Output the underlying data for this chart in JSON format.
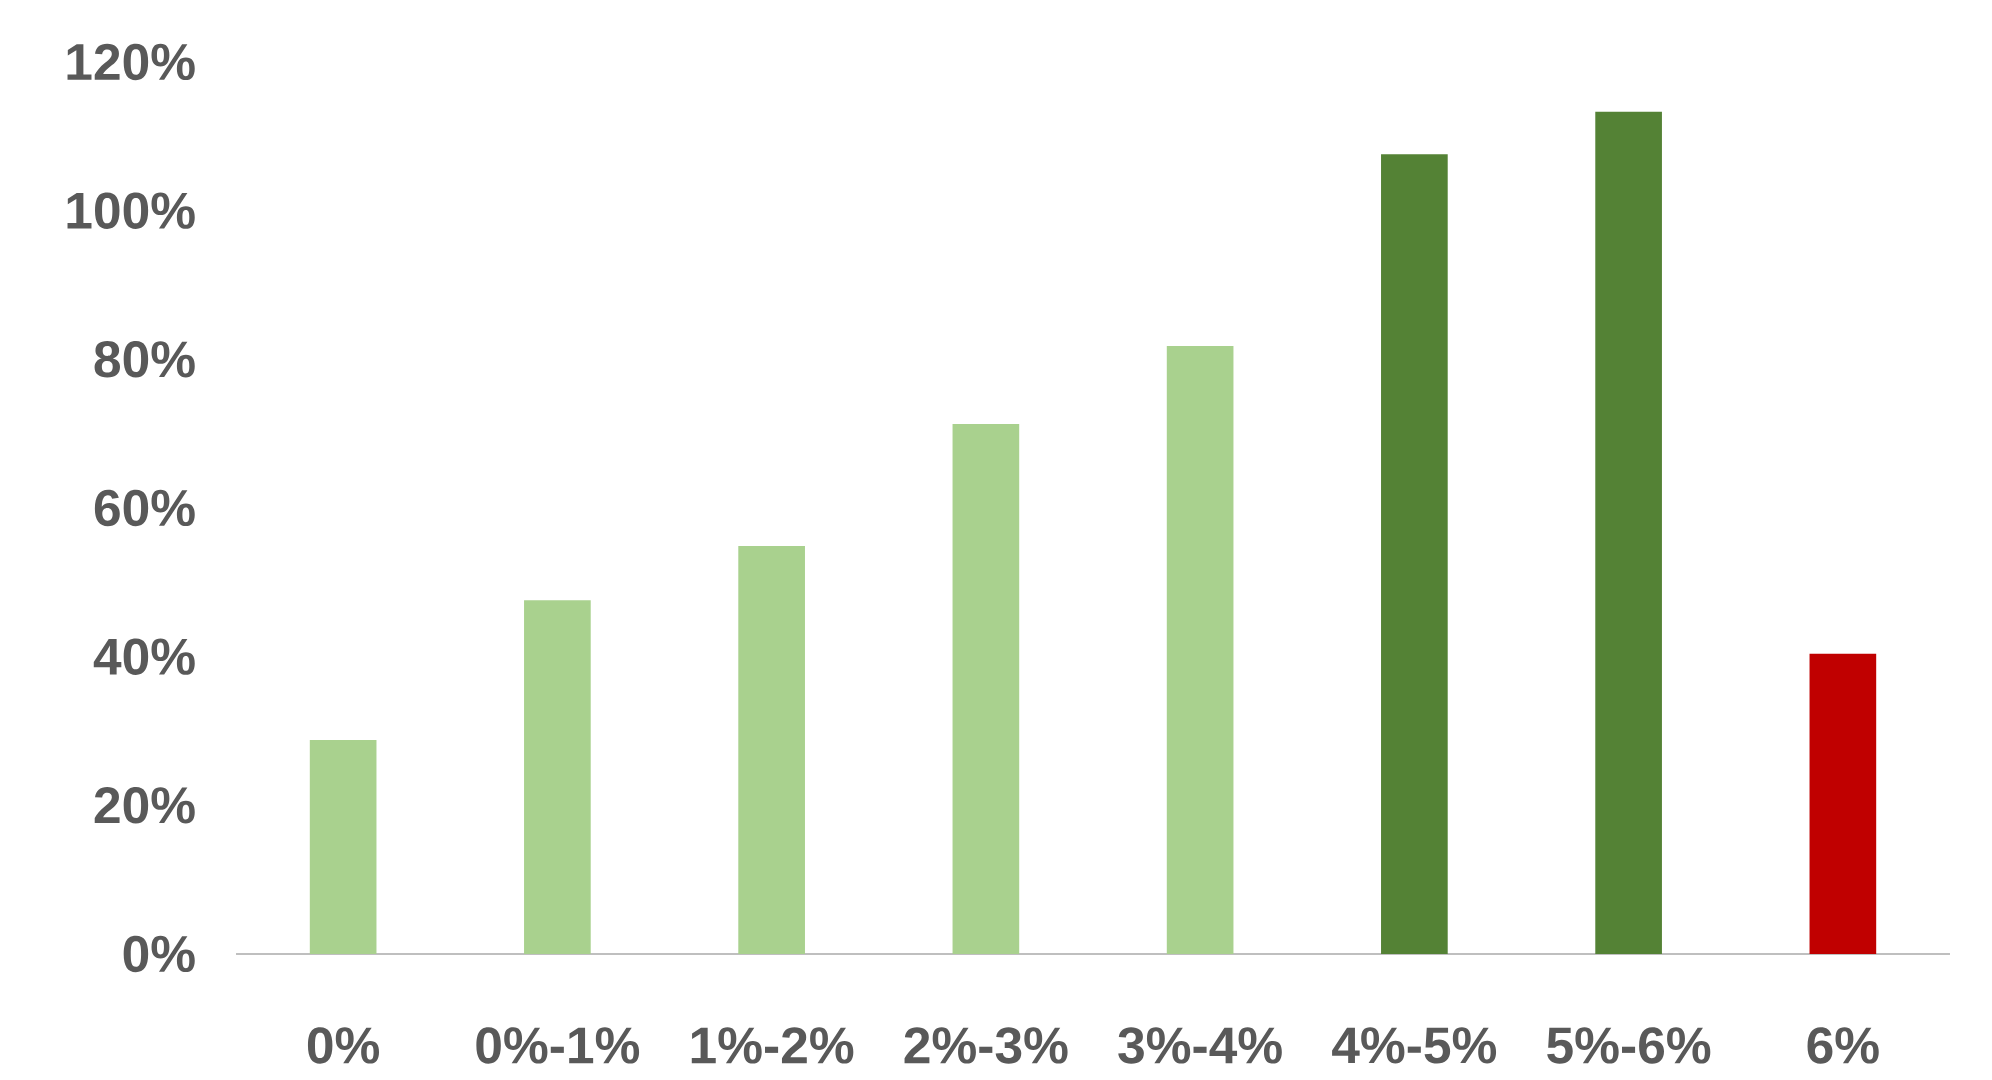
{
  "chart_data": {
    "type": "bar",
    "categories": [
      "0%",
      "0%-1%",
      "1%-2%",
      "2%-3%",
      "3%-4%",
      "4%-5%",
      "5%-6%",
      "6%"
    ],
    "values": [
      28.8,
      47.6,
      54.9,
      71.3,
      81.8,
      107.6,
      113.3,
      40.4
    ],
    "colors": [
      "#a9d18e",
      "#a9d18e",
      "#a9d18e",
      "#a9d18e",
      "#a9d18e",
      "#548235",
      "#548235",
      "#c00000"
    ],
    "ylim": [
      0,
      120
    ],
    "yticks": [
      {
        "value": 0,
        "label": "0%"
      },
      {
        "value": 20,
        "label": "20%"
      },
      {
        "value": 40,
        "label": "40%"
      },
      {
        "value": 60,
        "label": "60%"
      },
      {
        "value": 80,
        "label": "80%"
      },
      {
        "value": 100,
        "label": "100%"
      },
      {
        "value": 120,
        "label": "120%"
      }
    ],
    "grid": false
  }
}
